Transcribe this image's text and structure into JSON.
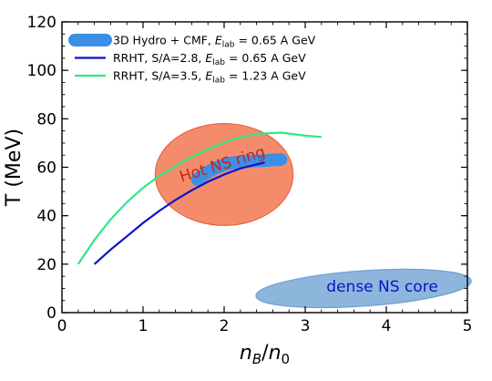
{
  "chart_data": {
    "type": "line",
    "xlabel": "n_B/n_0",
    "ylabel": "T (MeV)",
    "xlim": [
      0,
      5
    ],
    "ylim": [
      0,
      120
    ],
    "x_ticks": [
      0,
      1,
      2,
      3,
      4,
      5
    ],
    "y_ticks": [
      0,
      20,
      40,
      60,
      80,
      100,
      120
    ],
    "grid": false,
    "legend_position": "top-left",
    "series": [
      {
        "name": "3D Hydro + CMF, E_lab = 0.65 A GeV",
        "label_prefix": "3D Hydro + CMF, ",
        "label_subscript": "lab",
        "label_suffix": " = 0.65 A GeV",
        "color": "#3d8fe6",
        "style": "thick",
        "x": [
          1.67,
          1.75,
          1.85,
          1.95,
          2.05,
          2.2,
          2.35,
          2.5,
          2.6,
          2.7
        ],
        "y": [
          55,
          57,
          59,
          60.5,
          61.5,
          62.3,
          62.6,
          62.8,
          63,
          63.2
        ]
      },
      {
        "name": "RRHT, S/A=2.8, E_lab = 0.65 A GeV",
        "label_prefix": "RRHT, S/A=2.8, ",
        "label_subscript": "lab",
        "label_suffix": " = 0.65 A GeV",
        "color": "#0a14c8",
        "style": "thin",
        "x": [
          0.4,
          0.6,
          0.8,
          1.0,
          1.2,
          1.4,
          1.6,
          1.8,
          2.0,
          2.2,
          2.5
        ],
        "y": [
          20,
          26,
          31.5,
          37,
          42,
          46.5,
          50.5,
          54,
          57,
          59.5,
          62
        ]
      },
      {
        "name": "RRHT, S/A=3.5, E_lab = 1.23 A GeV",
        "label_prefix": "RRHT, S/A=3.5, ",
        "label_subscript": "lab",
        "label_suffix": " = 1.23 A GeV",
        "color": "#2ee887",
        "style": "thin",
        "x": [
          0.2,
          0.4,
          0.6,
          0.8,
          1.0,
          1.2,
          1.5,
          1.8,
          2.1,
          2.4,
          2.7,
          3.0,
          3.2
        ],
        "y": [
          20,
          30,
          38.5,
          45.5,
          51.5,
          56.5,
          62.5,
          67.5,
          71.5,
          73.8,
          74.3,
          73,
          72.5
        ]
      }
    ],
    "regions": [
      {
        "label": "Hot NS ring",
        "fill": "#f48c6c",
        "stroke": "#e8643e",
        "text_color": "#c0281e",
        "cx": 2.0,
        "cy": 57,
        "rx": 0.85,
        "ry": 21,
        "rotation_deg": 0
      },
      {
        "label": "dense NS core",
        "fill": "#8db6dc",
        "stroke": "#6f9fcf",
        "text_color": "#0a14c8",
        "cx": 3.72,
        "cy": 10,
        "rx": 1.33,
        "ry": 7.3,
        "rotation_deg": -4
      }
    ]
  }
}
